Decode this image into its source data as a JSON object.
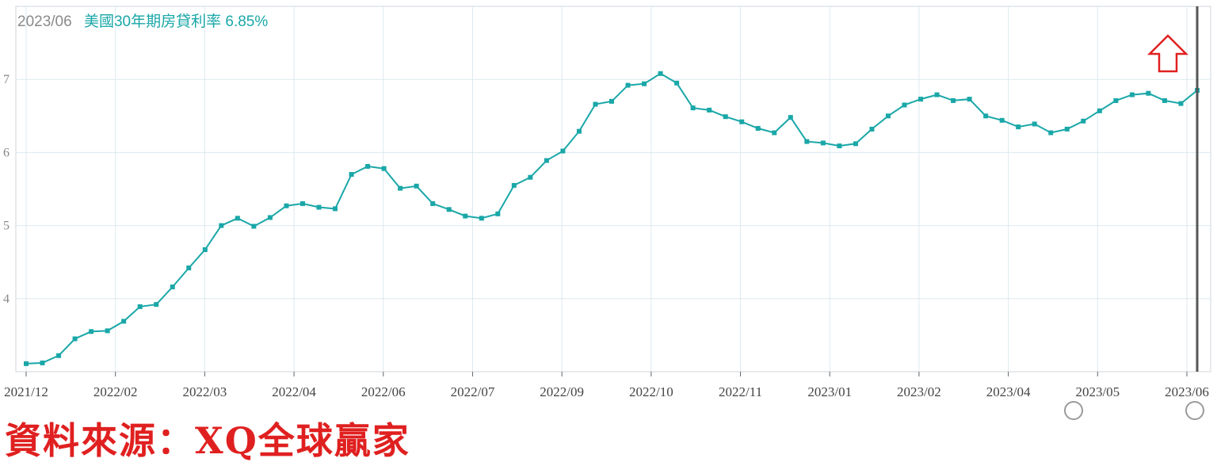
{
  "header": {
    "date": "2023/06",
    "series_label": "美國30年期房貸利率",
    "value": "6.85%"
  },
  "source_text": "資料來源：XQ全球贏家",
  "colors": {
    "line": "#1aa7a8",
    "grid": "#dde9ef",
    "arrow": "#e02020",
    "cursor": "#555555"
  },
  "chart_data": {
    "type": "line",
    "title": "",
    "xlabel": "",
    "ylabel": "",
    "ylim": [
      3.0,
      8.0
    ],
    "yticks": [
      4,
      5,
      6,
      7
    ],
    "grid": true,
    "x_tick_labels": [
      "2021/12",
      "2022/02",
      "2022/03",
      "2022/04",
      "2022/06",
      "2022/07",
      "2022/09",
      "2022/10",
      "2022/11",
      "2023/01",
      "2023/02",
      "2023/04",
      "2023/05",
      "2023/06"
    ],
    "series": [
      {
        "name": "美國30年期房貸利率",
        "values": [
          3.11,
          3.12,
          3.22,
          3.45,
          3.55,
          3.56,
          3.69,
          3.89,
          3.92,
          4.16,
          4.42,
          4.67,
          5.0,
          5.1,
          4.99,
          5.11,
          5.27,
          5.3,
          5.25,
          5.23,
          5.7,
          5.81,
          5.78,
          5.51,
          5.54,
          5.3,
          5.22,
          5.13,
          5.1,
          5.16,
          5.55,
          5.66,
          5.89,
          6.02,
          6.29,
          6.66,
          6.7,
          6.92,
          6.94,
          7.08,
          6.95,
          6.61,
          6.58,
          6.49,
          6.42,
          6.33,
          6.27,
          6.48,
          6.15,
          6.13,
          6.09,
          6.12,
          6.32,
          6.5,
          6.65,
          6.73,
          6.79,
          6.71,
          6.73,
          6.5,
          6.44,
          6.35,
          6.39,
          6.27,
          6.32,
          6.43,
          6.57,
          6.71,
          6.79,
          6.81,
          6.71,
          6.67,
          6.85
        ],
        "last_value": 6.85
      }
    ]
  }
}
